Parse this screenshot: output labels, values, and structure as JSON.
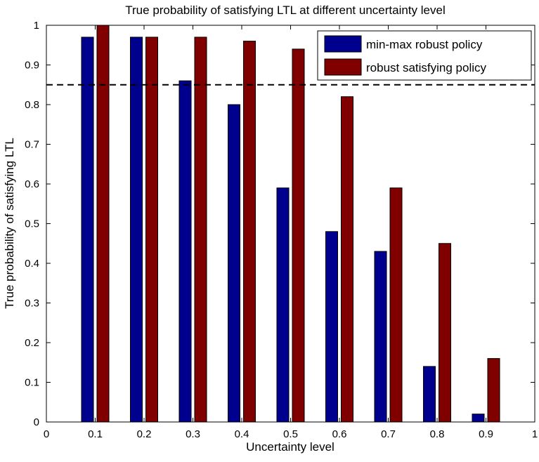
{
  "chart_data": {
    "type": "bar",
    "title": "True probability of satisfying LTL at different uncertainty level",
    "xlabel": "Uncertainty level",
    "ylabel": "True probability of satisfying LTL",
    "xlim": [
      0,
      1
    ],
    "ylim": [
      0,
      1
    ],
    "x_ticks": [
      "0",
      "0.1",
      "0.2",
      "0.3",
      "0.4",
      "0.5",
      "0.6",
      "0.7",
      "0.8",
      "0.9",
      "1"
    ],
    "y_ticks": [
      "0",
      "0.1",
      "0.2",
      "0.3",
      "0.4",
      "0.5",
      "0.6",
      "0.7",
      "0.8",
      "0.9",
      "1"
    ],
    "x": [
      0.1,
      0.2,
      0.3,
      0.4,
      0.5,
      0.6,
      0.7,
      0.8,
      0.9
    ],
    "series": [
      {
        "name": "min-max robust policy",
        "color": "#00008f",
        "values": [
          0.97,
          0.97,
          0.86,
          0.8,
          0.59,
          0.48,
          0.43,
          0.14,
          0.02
        ]
      },
      {
        "name": "robust satisfying policy",
        "color": "#800000",
        "values": [
          1.0,
          0.97,
          0.97,
          0.96,
          0.94,
          0.82,
          0.59,
          0.45,
          0.16
        ]
      }
    ],
    "threshold": {
      "value": 0.85,
      "style": "dashed",
      "color": "#000000"
    },
    "legend_position": "top-right",
    "grid": false
  }
}
